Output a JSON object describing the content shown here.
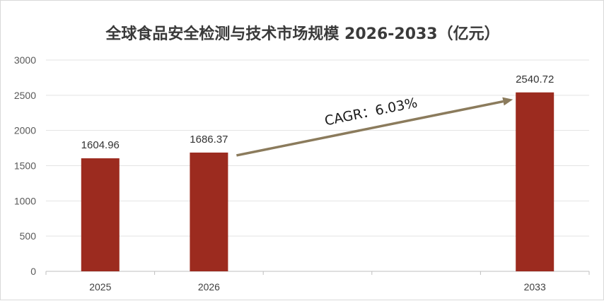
{
  "chart_data": {
    "type": "bar",
    "title": "全球食品安全检测与技术市场规模 2026-2033（亿元）",
    "categories": [
      "2025",
      "2026",
      "",
      "",
      "2033"
    ],
    "values": [
      1604.96,
      1686.37,
      null,
      null,
      2540.72
    ],
    "data_labels": [
      "1604.96",
      "1686.37",
      "",
      "",
      "2540.72"
    ],
    "yticks": [
      "0",
      "500",
      "1000",
      "1500",
      "2000",
      "2500",
      "3000"
    ],
    "ylim": [
      0,
      3000
    ],
    "grid": true,
    "bar_color": "#9c2b1f",
    "annotation": {
      "text": "CAGR：6.03%",
      "arrow_from": "2026",
      "arrow_to": "2033",
      "color": "#8b7b5c"
    }
  }
}
